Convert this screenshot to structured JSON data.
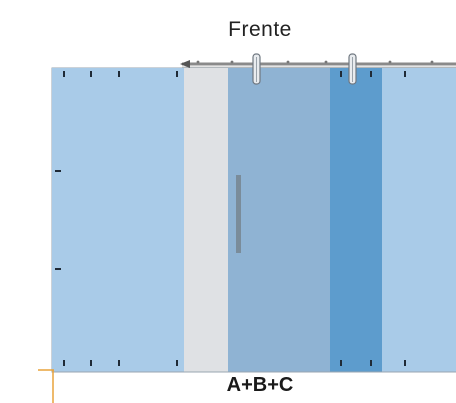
{
  "diagram": {
    "title": "Frente",
    "bottom_label": "A+B+C",
    "colors": {
      "fixed_panel": "#a9cbe8",
      "gap_panel": "#dfe1e4",
      "sliding_door": "#8fb3d3",
      "overlap_panel": "#5d9ccd",
      "right_panel": "#a9cbe8",
      "handle": "#7a8c9a",
      "rail": "#8a8a8a",
      "floor_mark": "#e8a23a"
    }
  }
}
